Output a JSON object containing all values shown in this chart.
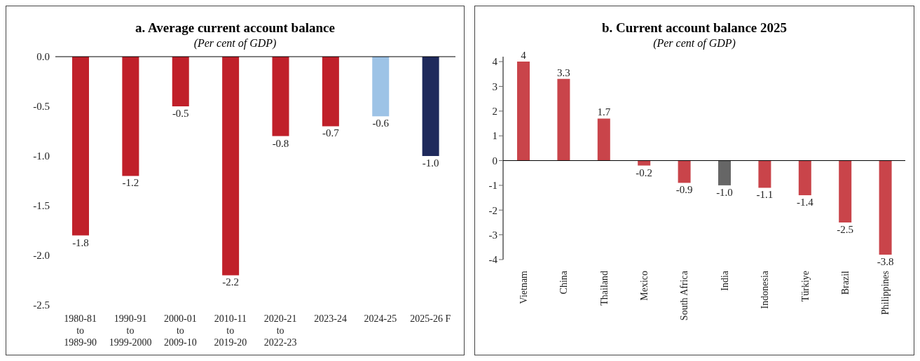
{
  "chart_data": [
    {
      "type": "bar",
      "title": "a. Average current account balance",
      "subtitle": "(Per cent of GDP)",
      "categories": [
        "1980-81\nto\n1989-90",
        "1990-91\nto\n1999-2000",
        "2000-01\nto\n2009-10",
        "2010-11\nto\n2019-20",
        "2020-21\nto\n2022-23",
        "2023-24",
        "2024-25",
        "2025-26 F"
      ],
      "values": [
        -1.8,
        -1.2,
        -0.5,
        -2.2,
        -0.8,
        -0.7,
        -0.6,
        -1.0
      ],
      "colors": [
        "#c0202a",
        "#c0202a",
        "#c0202a",
        "#c0202a",
        "#c0202a",
        "#c0202a",
        "#9dc3e6",
        "#1f2a5c"
      ],
      "value_labels": [
        "-1.8",
        "-1.2",
        "-0.5",
        "-2.2",
        "-0.8",
        "-0.7",
        "-0.6",
        "-1.0"
      ],
      "ylim": [
        -2.5,
        0
      ],
      "yticks": [
        {
          "value": 0,
          "label": "0.0"
        },
        {
          "value": -0.5,
          "label": "-0.5"
        },
        {
          "value": -1,
          "label": "-1.0"
        },
        {
          "value": -1.5,
          "label": "-1.5"
        },
        {
          "value": -2,
          "label": "-2.0"
        },
        {
          "value": -2.5,
          "label": "-2.5"
        }
      ]
    },
    {
      "type": "bar",
      "title": "b. Current account balance 2025",
      "subtitle": "(Per cent of GDP)",
      "categories": [
        "Vietnam",
        "China",
        "Thailand",
        "Mexico",
        "South Africa",
        "India",
        "Indonesia",
        "Türkiye",
        "Brazil",
        "Philippines"
      ],
      "values": [
        4,
        3.3,
        1.7,
        -0.2,
        -0.9,
        -1.0,
        -1.1,
        -1.4,
        -2.5,
        -3.8
      ],
      "colors": [
        "#c9444a",
        "#c9444a",
        "#c9444a",
        "#c9444a",
        "#c9444a",
        "#666666",
        "#c9444a",
        "#c9444a",
        "#c9444a",
        "#c9444a"
      ],
      "value_labels": [
        "4",
        "3.3",
        "1.7",
        "-0.2",
        "-0.9",
        "-1.0",
        "-1.1",
        "-1.4",
        "-2.5",
        "-3.8"
      ],
      "ylim": [
        -4,
        4.2
      ],
      "yticks": [
        -4,
        -3,
        -2,
        -1,
        0,
        1,
        2,
        3,
        4
      ]
    }
  ]
}
